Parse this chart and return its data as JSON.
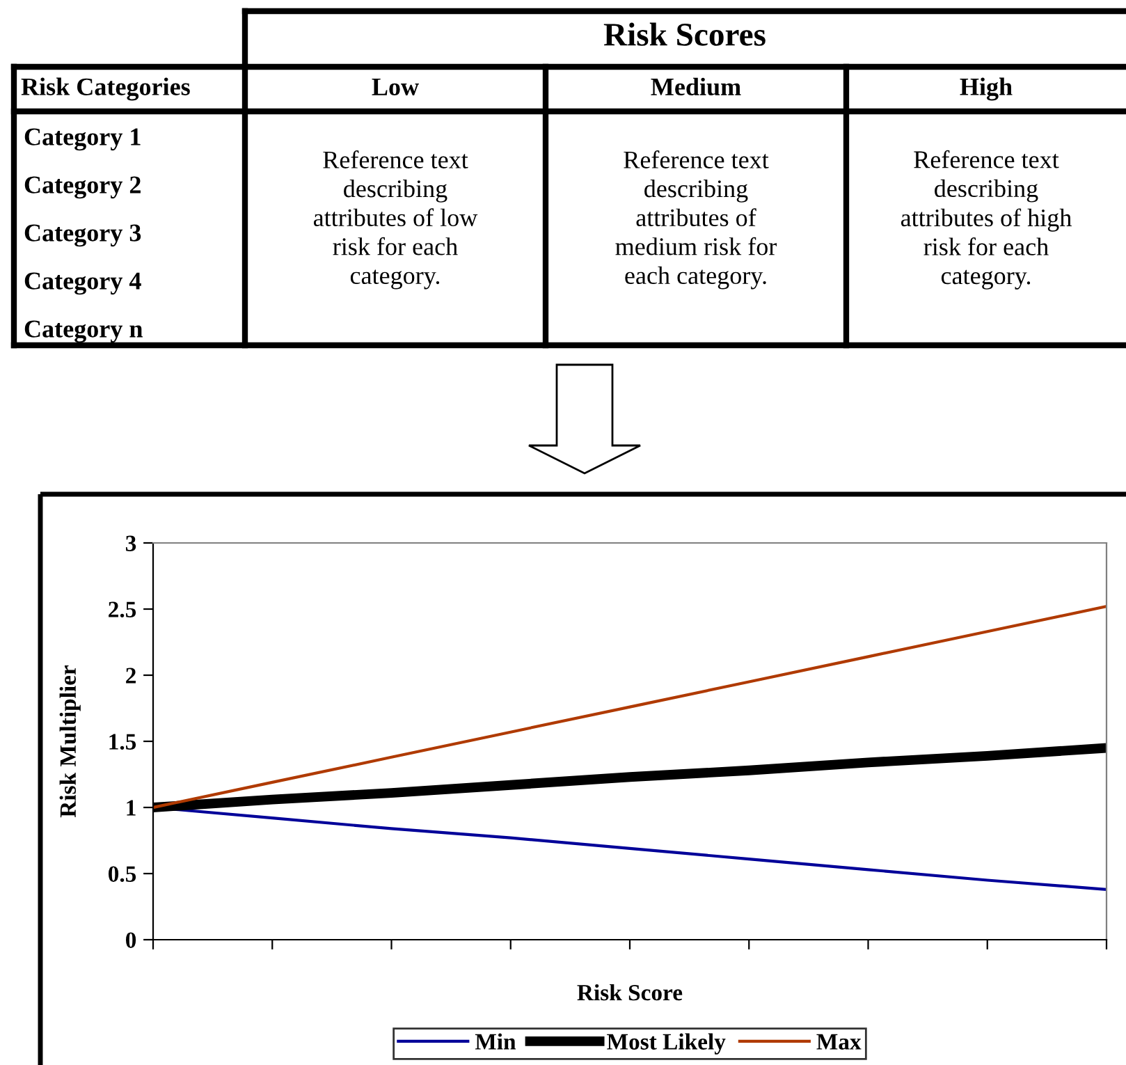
{
  "chart_data": [
    {
      "type": "other",
      "title": "Risk Scores",
      "annotations": [
        "Risk Categories",
        "Low",
        "Medium",
        "High",
        "Category 1",
        "Category 2",
        "Category 3",
        "Category 4",
        "Category n",
        "Reference text\ndescribing\nattributes of low\nrisk for each\ncategory.",
        "Reference text\ndescribing\nattributes of\nmedium risk for\neach category.",
        "Reference text\ndescribing\nattributes of high\nrisk for each\ncategory."
      ]
    },
    {
      "type": "line",
      "xlabel": "Risk Score",
      "ylabel": "Risk Multiplier",
      "categories": [
        null,
        null,
        null,
        null,
        null,
        null,
        null,
        null,
        null
      ],
      "ylim": [
        0,
        3
      ],
      "yticks": [
        0,
        0.5,
        1,
        1.5,
        2,
        2.5,
        3
      ],
      "grid": false,
      "legend": "bottom",
      "tick_labels": "y",
      "marker": "none",
      "line_style": "solid",
      "series": [
        {
          "name": "Min",
          "color": "#000099",
          "values": [
            1,
            0.92,
            0.84,
            0.77,
            0.69,
            0.61,
            0.53,
            0.45,
            0.38
          ]
        },
        {
          "name": "Most Likely",
          "color": "#000000",
          "values": [
            1,
            1.06,
            1.11,
            1.17,
            1.23,
            1.28,
            1.34,
            1.39,
            1.45
          ]
        },
        {
          "name": "Max",
          "color": "#b03a00",
          "values": [
            1,
            1.19,
            1.38,
            1.57,
            1.76,
            1.95,
            2.14,
            2.33,
            2.52
          ]
        }
      ]
    }
  ]
}
